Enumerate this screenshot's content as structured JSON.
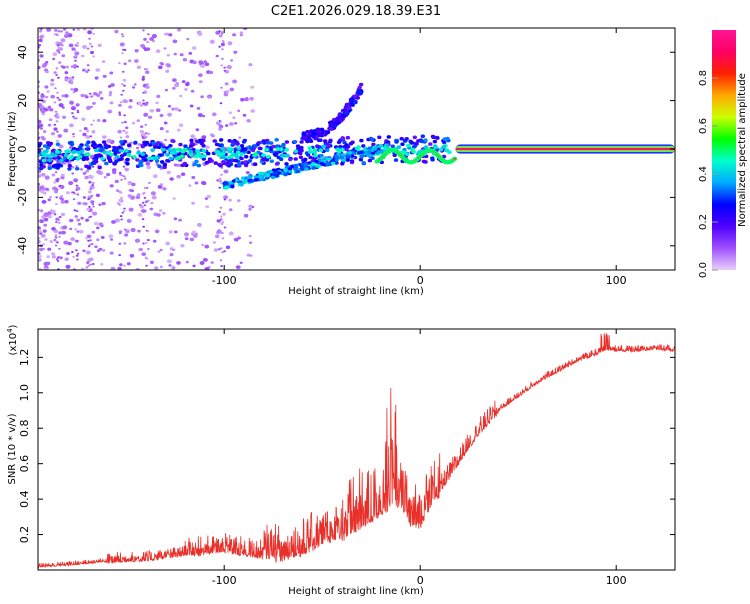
{
  "figure_title": "C2E1.2026.029.18.39.E31",
  "chart_data": [
    {
      "type": "heatmap",
      "title": "C2E1.2026.029.18.39.E31",
      "xlabel": "Height of straight line (km)",
      "ylabel": "Frequency (Hz)",
      "xlim": [
        -195,
        130
      ],
      "ylim": [
        -50,
        50
      ],
      "xticks": [
        -100,
        0,
        100
      ],
      "xtick_labels": [
        "-100",
        "0",
        "100"
      ],
      "yticks": [
        -40,
        -20,
        0,
        20,
        40
      ],
      "ytick_labels": [
        "-40",
        "-20",
        "0",
        "20",
        "40"
      ],
      "colorbar": {
        "label": "Normalized spectral amplitude",
        "range": [
          0,
          1
        ],
        "ticks": [
          0.0,
          0.2,
          0.4,
          0.6,
          0.8
        ],
        "tick_labels": [
          "0.0",
          "0.2",
          "0.4",
          "0.6",
          "0.8"
        ],
        "colormap": "rainbow",
        "stops": [
          "#e8d0f8",
          "#a050ff",
          "#5000ff",
          "#0000ff",
          "#00aaff",
          "#00ffcc",
          "#00ff00",
          "#ccff00",
          "#ffaa00",
          "#ff2000",
          "#ff0066",
          "#ff1493"
        ]
      },
      "features": [
        {
          "name": "main band",
          "x_range": [
            -195,
            15
          ],
          "frequency": [
            -8,
            4
          ],
          "amplitude": 0.35
        },
        {
          "name": "upper branch",
          "x_range": [
            -60,
            -30
          ],
          "frequency": [
            5,
            25
          ],
          "amplitude": 0.25
        },
        {
          "name": "lower branch",
          "x_range": [
            -100,
            -20
          ],
          "frequency": [
            -15,
            0
          ],
          "amplitude": 0.4
        },
        {
          "name": "zero line",
          "x_range": [
            -20,
            130
          ],
          "frequency": 0,
          "amplitude": 0.98
        }
      ]
    },
    {
      "type": "line",
      "xlabel": "Height of straight line (km)",
      "ylabel": "SNR (10 * v/v)",
      "y_scale_label": "(x10",
      "y_scale_exp": "4",
      "y_scale": 10000,
      "xlim": [
        -195,
        130
      ],
      "ylim": [
        0.0,
        1.36
      ],
      "xticks": [
        -100,
        0,
        100
      ],
      "xtick_labels": [
        "-100",
        "0",
        "100"
      ],
      "yticks": [
        0.2,
        0.4,
        0.6,
        0.8,
        1.0,
        1.2
      ],
      "ytick_labels": [
        "0.2",
        "0.4",
        "0.6",
        "0.8",
        "1.0",
        "1.2"
      ],
      "color": "#e8302a",
      "series": [
        {
          "name": "SNR",
          "x": [
            -195,
            -180,
            -160,
            -140,
            -120,
            -100,
            -90,
            -80,
            -70,
            -60,
            -50,
            -40,
            -30,
            -20,
            -15,
            -10,
            -5,
            0,
            5,
            10,
            20,
            30,
            40,
            50,
            60,
            70,
            80,
            90,
            95,
            100,
            110,
            120,
            130
          ],
          "y": [
            0.02,
            0.03,
            0.05,
            0.06,
            0.09,
            0.12,
            0.1,
            0.08,
            0.09,
            0.12,
            0.18,
            0.22,
            0.3,
            0.35,
            0.42,
            0.4,
            0.3,
            0.28,
            0.4,
            0.45,
            0.62,
            0.78,
            0.9,
            0.98,
            1.06,
            1.12,
            1.18,
            1.22,
            1.25,
            1.24,
            1.24,
            1.25,
            1.24
          ]
        }
      ]
    }
  ]
}
